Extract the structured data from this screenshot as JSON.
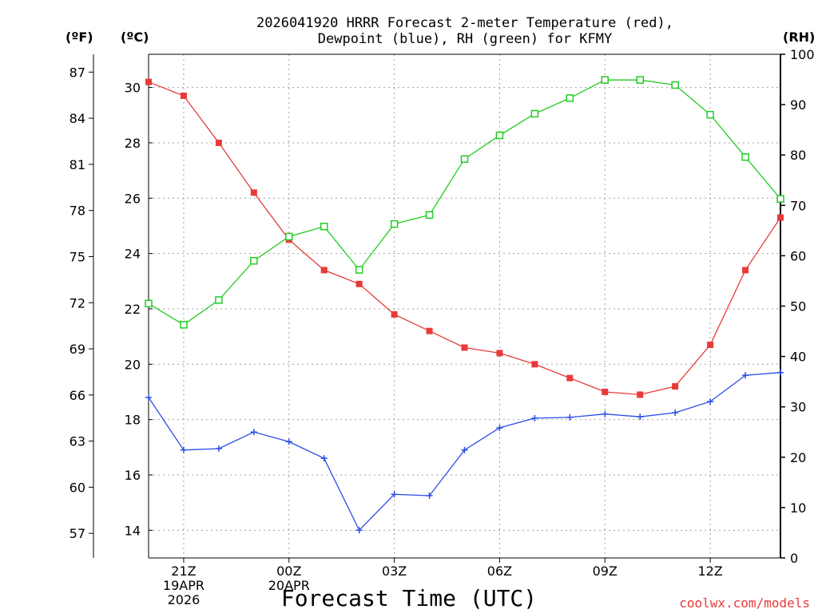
{
  "chart_data": {
    "type": "line",
    "title_line1": "2026041920 HRRR Forecast 2-meter Temperature (red),",
    "title_line2": "Dewpoint (blue), RH (green) for KFMY",
    "xlabel": "Forecast Time (UTC)",
    "credit": "coolwx.com/models",
    "units": {
      "left_f": "(ºF)",
      "left_c": "(ºC)",
      "right": "(RH)"
    },
    "x_hours": [
      20,
      21,
      22,
      23,
      24,
      25,
      26,
      27,
      28,
      29,
      30,
      31,
      32,
      33,
      34,
      35,
      36,
      37,
      38
    ],
    "x_ticks": [
      {
        "hour": 21,
        "lines": [
          "21Z",
          "19APR",
          "2026"
        ]
      },
      {
        "hour": 24,
        "lines": [
          "00Z",
          "20APR"
        ]
      },
      {
        "hour": 27,
        "lines": [
          "03Z"
        ]
      },
      {
        "hour": 30,
        "lines": [
          "06Z"
        ]
      },
      {
        "hour": 33,
        "lines": [
          "09Z"
        ]
      },
      {
        "hour": 36,
        "lines": [
          "12Z"
        ]
      }
    ],
    "celsius_axis": {
      "range": [
        13.0,
        31.2
      ],
      "ticks": [
        "14",
        "16",
        "18",
        "20",
        "22",
        "24",
        "26",
        "28",
        "30"
      ]
    },
    "fahrenheit_axis": {
      "ticks": [
        "57",
        "60",
        "63",
        "66",
        "69",
        "72",
        "75",
        "78",
        "81",
        "84",
        "87"
      ]
    },
    "rh_axis": {
      "range": [
        0,
        100
      ],
      "ticks": [
        "0",
        "10",
        "20",
        "30",
        "40",
        "50",
        "60",
        "70",
        "80",
        "90",
        "100"
      ]
    },
    "series": [
      {
        "name": "Temperature",
        "unit": "C",
        "color": "#e83a3a",
        "marker": "filled-square",
        "values": [
          30.2,
          29.7,
          28.0,
          26.2,
          24.5,
          23.4,
          22.9,
          21.8,
          21.2,
          20.6,
          20.4,
          20.0,
          19.5,
          19.0,
          18.9,
          19.2,
          20.7,
          23.4,
          25.3
        ]
      },
      {
        "name": "Dewpoint",
        "unit": "C",
        "color": "#2a4de8",
        "marker": "plus",
        "values": [
          18.8,
          16.9,
          16.95,
          17.55,
          17.2,
          16.6,
          14.0,
          15.3,
          15.25,
          16.9,
          17.7,
          18.05,
          18.08,
          18.2,
          18.1,
          18.25,
          18.65,
          19.6,
          19.7
        ]
      },
      {
        "name": "RH",
        "unit": "%",
        "color": "#22cc22",
        "marker": "open-square",
        "values": [
          50.5,
          46.3,
          51.2,
          59.0,
          63.8,
          65.8,
          57.2,
          66.3,
          68.1,
          79.2,
          83.9,
          88.2,
          91.3,
          94.9,
          94.9,
          93.9,
          88.0,
          79.6,
          71.3
        ]
      }
    ]
  }
}
